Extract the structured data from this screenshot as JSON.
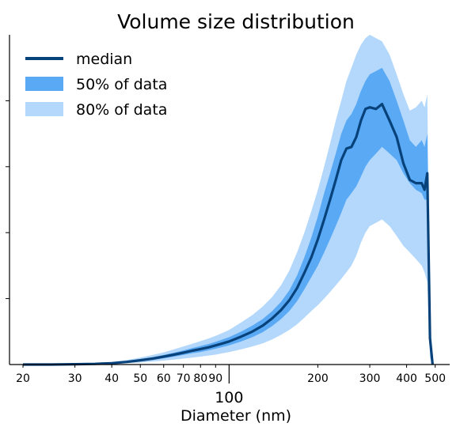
{
  "chart_data": {
    "type": "area",
    "title": "Volume size distribution",
    "xlabel": "Diameter (nm)",
    "ylabel": "",
    "xscale": "log",
    "xlim": [
      18,
      560
    ],
    "ylim": [
      0,
      1.0
    ],
    "grid": false,
    "legend_position": "top-left",
    "x_ticks_minor": [
      "20",
      "30",
      "40",
      "50",
      "60",
      "70",
      "80",
      "90",
      "200",
      "300",
      "400",
      "500"
    ],
    "x_tick_major": "100",
    "legend": [
      "median",
      "50% of data",
      "80% of data"
    ],
    "colors": {
      "median": "#08427a",
      "band50": "#5aa9f5",
      "band80": "#b3d8fc"
    },
    "x": [
      20,
      25,
      30,
      35,
      40,
      45,
      50,
      55,
      60,
      65,
      70,
      75,
      80,
      85,
      90,
      95,
      100,
      110,
      120,
      130,
      140,
      150,
      160,
      170,
      180,
      190,
      200,
      210,
      220,
      230,
      240,
      250,
      260,
      270,
      280,
      290,
      300,
      315,
      330,
      350,
      370,
      390,
      410,
      430,
      450,
      460,
      470,
      480,
      490
    ],
    "median": [
      0,
      0,
      0.001,
      0.002,
      0.004,
      0.008,
      0.013,
      0.018,
      0.024,
      0.03,
      0.036,
      0.042,
      0.047,
      0.052,
      0.058,
      0.064,
      0.07,
      0.085,
      0.1,
      0.118,
      0.14,
      0.165,
      0.195,
      0.232,
      0.278,
      0.325,
      0.38,
      0.44,
      0.5,
      0.56,
      0.62,
      0.655,
      0.66,
      0.69,
      0.74,
      0.775,
      0.78,
      0.775,
      0.79,
      0.74,
      0.69,
      0.61,
      0.56,
      0.55,
      0.55,
      0.53,
      0.58,
      0.08,
      0
    ],
    "band50_low": [
      0,
      0,
      0.001,
      0.002,
      0.003,
      0.006,
      0.01,
      0.014,
      0.019,
      0.024,
      0.029,
      0.034,
      0.038,
      0.043,
      0.048,
      0.053,
      0.058,
      0.07,
      0.083,
      0.098,
      0.117,
      0.138,
      0.162,
      0.192,
      0.228,
      0.265,
      0.3,
      0.34,
      0.38,
      0.42,
      0.46,
      0.5,
      0.52,
      0.54,
      0.57,
      0.6,
      0.62,
      0.64,
      0.66,
      0.64,
      0.62,
      0.58,
      0.55,
      0.53,
      0.52,
      0.5,
      0.5,
      0.05,
      0
    ],
    "band50_high": [
      0,
      0,
      0.001,
      0.003,
      0.005,
      0.01,
      0.016,
      0.022,
      0.029,
      0.036,
      0.043,
      0.05,
      0.056,
      0.062,
      0.069,
      0.076,
      0.083,
      0.1,
      0.118,
      0.138,
      0.162,
      0.19,
      0.225,
      0.27,
      0.325,
      0.385,
      0.45,
      0.52,
      0.58,
      0.64,
      0.7,
      0.74,
      0.76,
      0.79,
      0.83,
      0.86,
      0.88,
      0.89,
      0.9,
      0.86,
      0.8,
      0.74,
      0.68,
      0.66,
      0.68,
      0.66,
      0.7,
      0.12,
      0
    ],
    "band80_low": [
      0,
      0,
      0,
      0.001,
      0.002,
      0.004,
      0.006,
      0.009,
      0.012,
      0.015,
      0.018,
      0.021,
      0.024,
      0.027,
      0.03,
      0.034,
      0.038,
      0.046,
      0.055,
      0.064,
      0.076,
      0.09,
      0.105,
      0.122,
      0.142,
      0.162,
      0.18,
      0.2,
      0.22,
      0.24,
      0.26,
      0.28,
      0.3,
      0.33,
      0.37,
      0.4,
      0.42,
      0.43,
      0.44,
      0.42,
      0.39,
      0.36,
      0.34,
      0.32,
      0.3,
      0.28,
      0.25,
      0.02,
      0
    ],
    "band80_high": [
      0,
      0,
      0.002,
      0.004,
      0.008,
      0.014,
      0.021,
      0.029,
      0.037,
      0.046,
      0.055,
      0.063,
      0.071,
      0.079,
      0.087,
      0.096,
      0.105,
      0.128,
      0.15,
      0.176,
      0.205,
      0.24,
      0.285,
      0.34,
      0.4,
      0.465,
      0.53,
      0.6,
      0.67,
      0.74,
      0.8,
      0.86,
      0.9,
      0.94,
      0.97,
      0.99,
      1.0,
      0.99,
      0.98,
      0.94,
      0.88,
      0.82,
      0.77,
      0.78,
      0.8,
      0.78,
      0.82,
      0.15,
      0
    ]
  }
}
